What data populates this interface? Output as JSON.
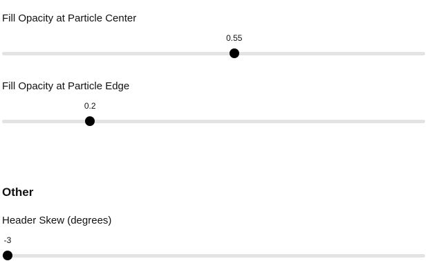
{
  "sliders": [
    {
      "label": "Fill Opacity at Particle Center",
      "value": 0.55,
      "value_text": "0.55",
      "fraction": 0.55
    },
    {
      "label": "Fill Opacity at Particle Edge",
      "value": 0.2,
      "value_text": "0.2",
      "fraction": 0.2
    }
  ],
  "other": {
    "heading": "Other",
    "sliders": [
      {
        "label": "Header Skew (degrees)",
        "value": -3,
        "value_text": "-3",
        "fraction": 0.0
      }
    ]
  },
  "colors": {
    "track": "#e3e3e3",
    "thumb": "#000000"
  }
}
